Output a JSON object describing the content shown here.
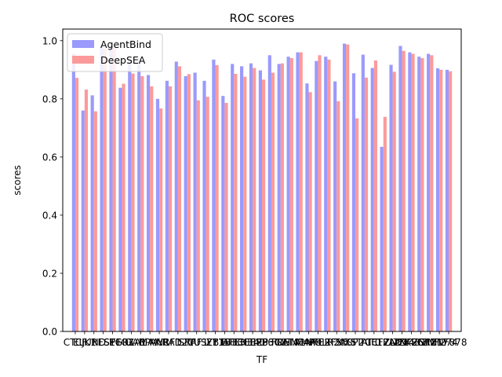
{
  "chart_data": {
    "type": "bar",
    "title": "ROC scores",
    "xlabel": "TF",
    "ylabel": "scores",
    "ylim": [
      0,
      1.04
    ],
    "yticks": [
      "0.0",
      "0.2",
      "0.4",
      "0.6",
      "0.8",
      "1.0"
    ],
    "grid": false,
    "legend_position": "top-left",
    "categories": [
      "CTCF",
      "ELK1",
      "JUND",
      "REST",
      "SP1",
      "EGR1",
      "FOXA1",
      "GABPA",
      "MAX",
      "MYC",
      "NRF1",
      "RAD21",
      "SRF",
      "TAF1",
      "USF1",
      "YY1",
      "ZBTB33",
      "ATF3",
      "BHLHE40",
      "CEBPB",
      "E2F6",
      "EP300",
      "FOS",
      "GATA2",
      "HNF4A",
      "MAFK",
      "NFE2",
      "POLR2A",
      "RFX5",
      "SIX5",
      "SP2",
      "STAT1",
      "TCF12",
      "TCF7L2",
      "TEAD4",
      "ZNF143",
      "ZNF263",
      "ZKSCAN1",
      "ZNF217",
      "ZNF274",
      "ZNF878"
    ],
    "series": [
      {
        "name": "AgentBind",
        "color": "#9a9afc",
        "values": [
          0.955,
          0.76,
          0.812,
          0.98,
          0.983,
          0.838,
          0.932,
          0.94,
          0.882,
          0.8,
          0.862,
          0.928,
          0.878,
          0.89,
          0.862,
          0.935,
          0.81,
          0.92,
          0.912,
          0.922,
          0.898,
          0.95,
          0.92,
          0.945,
          0.96,
          0.853,
          0.93,
          0.945,
          0.86,
          0.99,
          0.888,
          0.952,
          0.906,
          0.635,
          0.917,
          0.982,
          0.96,
          0.945,
          0.955,
          0.905,
          0.9
        ]
      },
      {
        "name": "DeepSEA",
        "color": "#fc9a9a",
        "values": [
          0.872,
          0.832,
          0.757,
          0.972,
          0.977,
          0.852,
          0.887,
          0.878,
          0.843,
          0.767,
          0.843,
          0.912,
          0.885,
          0.795,
          0.807,
          0.916,
          0.786,
          0.886,
          0.876,
          0.906,
          0.866,
          0.89,
          0.922,
          0.94,
          0.96,
          0.823,
          0.95,
          0.935,
          0.792,
          0.987,
          0.733,
          0.873,
          0.932,
          0.738,
          0.893,
          0.965,
          0.955,
          0.94,
          0.95,
          0.9,
          0.895
        ]
      }
    ]
  }
}
